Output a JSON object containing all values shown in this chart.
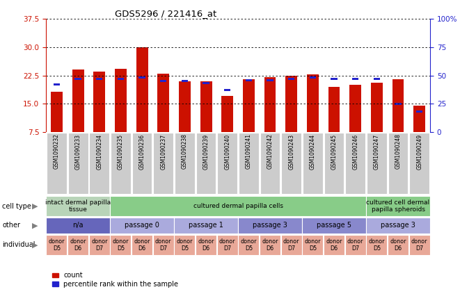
{
  "title": "GDS5296 / 221416_at",
  "samples": [
    "GSM1090232",
    "GSM1090233",
    "GSM1090234",
    "GSM1090235",
    "GSM1090236",
    "GSM1090237",
    "GSM1090238",
    "GSM1090239",
    "GSM1090240",
    "GSM1090241",
    "GSM1090242",
    "GSM1090243",
    "GSM1090244",
    "GSM1090245",
    "GSM1090246",
    "GSM1090247",
    "GSM1090248",
    "GSM1090249"
  ],
  "count_values": [
    18.2,
    24.0,
    23.5,
    24.2,
    30.0,
    23.0,
    21.0,
    21.0,
    17.0,
    21.5,
    22.0,
    22.5,
    22.8,
    19.5,
    20.0,
    20.5,
    21.5,
    14.5
  ],
  "percentile_values": [
    42,
    47,
    47,
    47,
    48,
    45,
    45,
    43,
    37,
    46,
    46,
    47,
    48,
    47,
    47,
    47,
    25,
    18
  ],
  "bar_color": "#cc1100",
  "blue_color": "#2222cc",
  "ylim_left": [
    7.5,
    37.5
  ],
  "yticks_left": [
    7.5,
    15.0,
    22.5,
    30.0,
    37.5
  ],
  "ylim_right": [
    0,
    100
  ],
  "yticks_right": [
    0,
    25,
    50,
    75,
    100
  ],
  "bar_width": 0.55,
  "cell_type_groups": [
    {
      "label": "intact dermal papilla\ntissue",
      "start": 0,
      "end": 3,
      "color": "#b8d4b8"
    },
    {
      "label": "cultured dermal papilla cells",
      "start": 3,
      "end": 15,
      "color": "#88cc88"
    },
    {
      "label": "cultured cell dermal\npapilla spheroids",
      "start": 15,
      "end": 18,
      "color": "#88cc88"
    }
  ],
  "other_groups": [
    {
      "label": "n/a",
      "start": 0,
      "end": 3,
      "color": "#6666bb"
    },
    {
      "label": "passage 0",
      "start": 3,
      "end": 6,
      "color": "#aaaadd"
    },
    {
      "label": "passage 1",
      "start": 6,
      "end": 9,
      "color": "#aaaadd"
    },
    {
      "label": "passage 3",
      "start": 9,
      "end": 12,
      "color": "#8888cc"
    },
    {
      "label": "passage 5",
      "start": 12,
      "end": 15,
      "color": "#8888cc"
    },
    {
      "label": "passage 3",
      "start": 15,
      "end": 18,
      "color": "#aaaadd"
    }
  ],
  "individual_groups": [
    {
      "label": "donor\nD5",
      "start": 0,
      "end": 1,
      "color": "#e8a898"
    },
    {
      "label": "donor\nD6",
      "start": 1,
      "end": 2,
      "color": "#e8a898"
    },
    {
      "label": "donor\nD7",
      "start": 2,
      "end": 3,
      "color": "#e8a898"
    },
    {
      "label": "donor\nD5",
      "start": 3,
      "end": 4,
      "color": "#e8a898"
    },
    {
      "label": "donor\nD6",
      "start": 4,
      "end": 5,
      "color": "#e8a898"
    },
    {
      "label": "donor\nD7",
      "start": 5,
      "end": 6,
      "color": "#e8a898"
    },
    {
      "label": "donor\nD5",
      "start": 6,
      "end": 7,
      "color": "#e8a898"
    },
    {
      "label": "donor\nD6",
      "start": 7,
      "end": 8,
      "color": "#e8a898"
    },
    {
      "label": "donor\nD7",
      "start": 8,
      "end": 9,
      "color": "#e8a898"
    },
    {
      "label": "donor\nD5",
      "start": 9,
      "end": 10,
      "color": "#e8a898"
    },
    {
      "label": "donor\nD6",
      "start": 10,
      "end": 11,
      "color": "#e8a898"
    },
    {
      "label": "donor\nD7",
      "start": 11,
      "end": 12,
      "color": "#e8a898"
    },
    {
      "label": "donor\nD5",
      "start": 12,
      "end": 13,
      "color": "#e8a898"
    },
    {
      "label": "donor\nD6",
      "start": 13,
      "end": 14,
      "color": "#e8a898"
    },
    {
      "label": "donor\nD7",
      "start": 14,
      "end": 15,
      "color": "#e8a898"
    },
    {
      "label": "donor\nD5",
      "start": 15,
      "end": 16,
      "color": "#e8a898"
    },
    {
      "label": "donor\nD6",
      "start": 16,
      "end": 17,
      "color": "#e8a898"
    },
    {
      "label": "donor\nD7",
      "start": 17,
      "end": 18,
      "color": "#e8a898"
    }
  ],
  "row_labels": [
    {
      "text": "cell type",
      "arrow": "▶"
    },
    {
      "text": "other",
      "arrow": "▶"
    },
    {
      "text": "individual",
      "arrow": "▶"
    }
  ],
  "legend_items": [
    {
      "label": "count",
      "color": "#cc1100"
    },
    {
      "label": "percentile rank within the sample",
      "color": "#2222cc"
    }
  ],
  "background_color": "#ffffff",
  "grid_color": "#000000",
  "title_color": "#000000",
  "left_axis_color": "#cc1100",
  "right_axis_color": "#2222cc",
  "xtick_box_color": "#cccccc"
}
